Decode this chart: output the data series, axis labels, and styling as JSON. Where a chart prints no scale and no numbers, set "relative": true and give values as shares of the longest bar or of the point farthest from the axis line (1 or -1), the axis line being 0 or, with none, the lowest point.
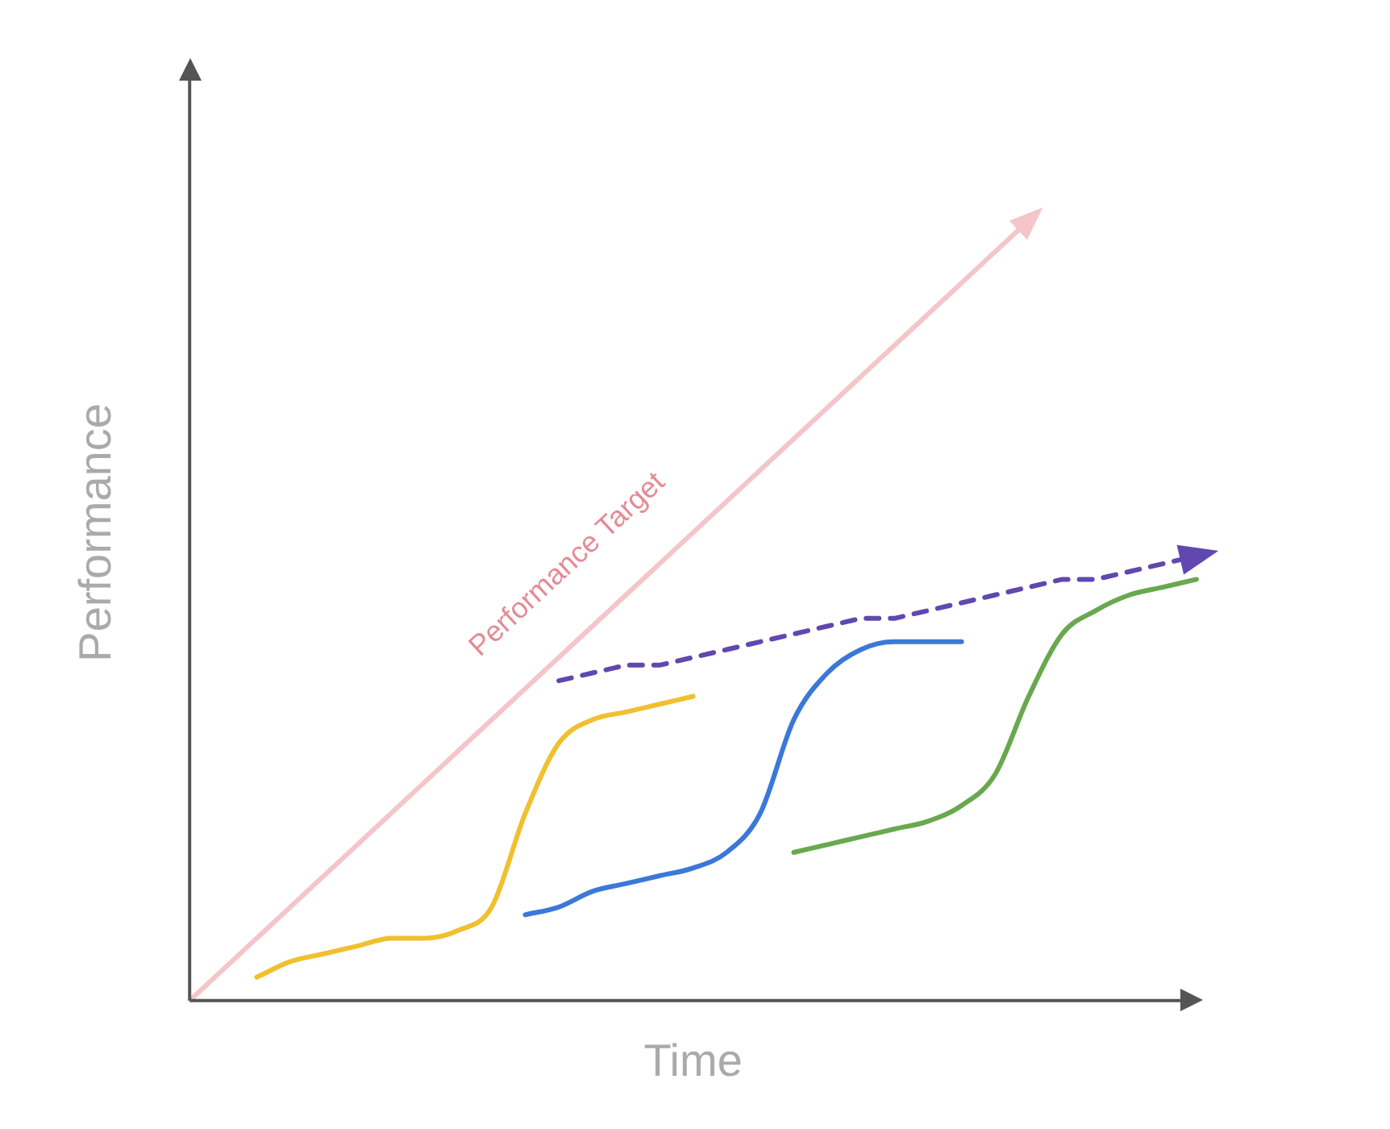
{
  "chart_data": {
    "type": "line",
    "relative": true,
    "xlabel": "Time",
    "ylabel": "Performance",
    "grid": false,
    "tick_labels": false,
    "legend": false,
    "marker": "none",
    "categories": [
      null,
      null,
      null,
      null,
      null,
      null,
      null,
      null,
      null,
      null,
      null,
      null,
      null,
      null,
      null,
      null,
      null,
      null,
      null,
      null,
      null,
      null,
      null,
      null,
      null,
      null,
      null,
      null,
      null,
      null,
      null
    ],
    "series": [
      {
        "name": "Performance Target",
        "color": "#f4c5c9",
        "values": [
          0,
          0.04,
          0.08,
          0.12,
          0.16,
          0.2,
          0.24,
          0.28,
          0.32,
          0.36,
          0.4,
          0.44,
          0.48,
          0.52,
          0.56,
          0.6,
          0.64,
          0.68,
          0.72,
          0.76,
          0.8,
          0.84,
          0.88,
          0.92,
          0.96,
          1,
          null,
          null,
          null,
          null,
          null
        ]
      },
      {
        "color": "#f0c030",
        "values": [
          null,
          null,
          0.03,
          0.05,
          0.06,
          0.07,
          0.08,
          0.08,
          0.09,
          0.12,
          0.24,
          0.33,
          0.36,
          0.37,
          0.38,
          0.39,
          null,
          null,
          null,
          null,
          null,
          null,
          null,
          null,
          null,
          null,
          null,
          null,
          null,
          null,
          null
        ]
      },
      {
        "color": "#3b78d8",
        "values": [
          null,
          null,
          null,
          null,
          null,
          null,
          null,
          null,
          null,
          null,
          0.11,
          0.12,
          0.14,
          0.15,
          0.16,
          0.17,
          0.19,
          0.24,
          0.36,
          0.42,
          0.45,
          0.46,
          0.46,
          0.46,
          null,
          null,
          null,
          null,
          null,
          null,
          null
        ]
      },
      {
        "color": "#6aa84f",
        "values": [
          null,
          null,
          null,
          null,
          null,
          null,
          null,
          null,
          null,
          null,
          null,
          null,
          null,
          null,
          null,
          null,
          null,
          null,
          0.19,
          0.2,
          0.21,
          0.22,
          0.23,
          0.25,
          0.29,
          0.39,
          0.47,
          0.5,
          0.52,
          0.53,
          0.54
        ]
      },
      {
        "color": "#6048b0",
        "line_style": "dashed",
        "values": [
          null,
          null,
          null,
          null,
          null,
          null,
          null,
          null,
          null,
          null,
          null,
          0.41,
          0.42,
          0.43,
          0.43,
          0.44,
          0.45,
          0.46,
          0.47,
          0.48,
          0.49,
          0.49,
          0.5,
          0.51,
          0.52,
          0.53,
          0.54,
          0.54,
          0.55,
          0.56,
          0.57
        ]
      }
    ]
  }
}
